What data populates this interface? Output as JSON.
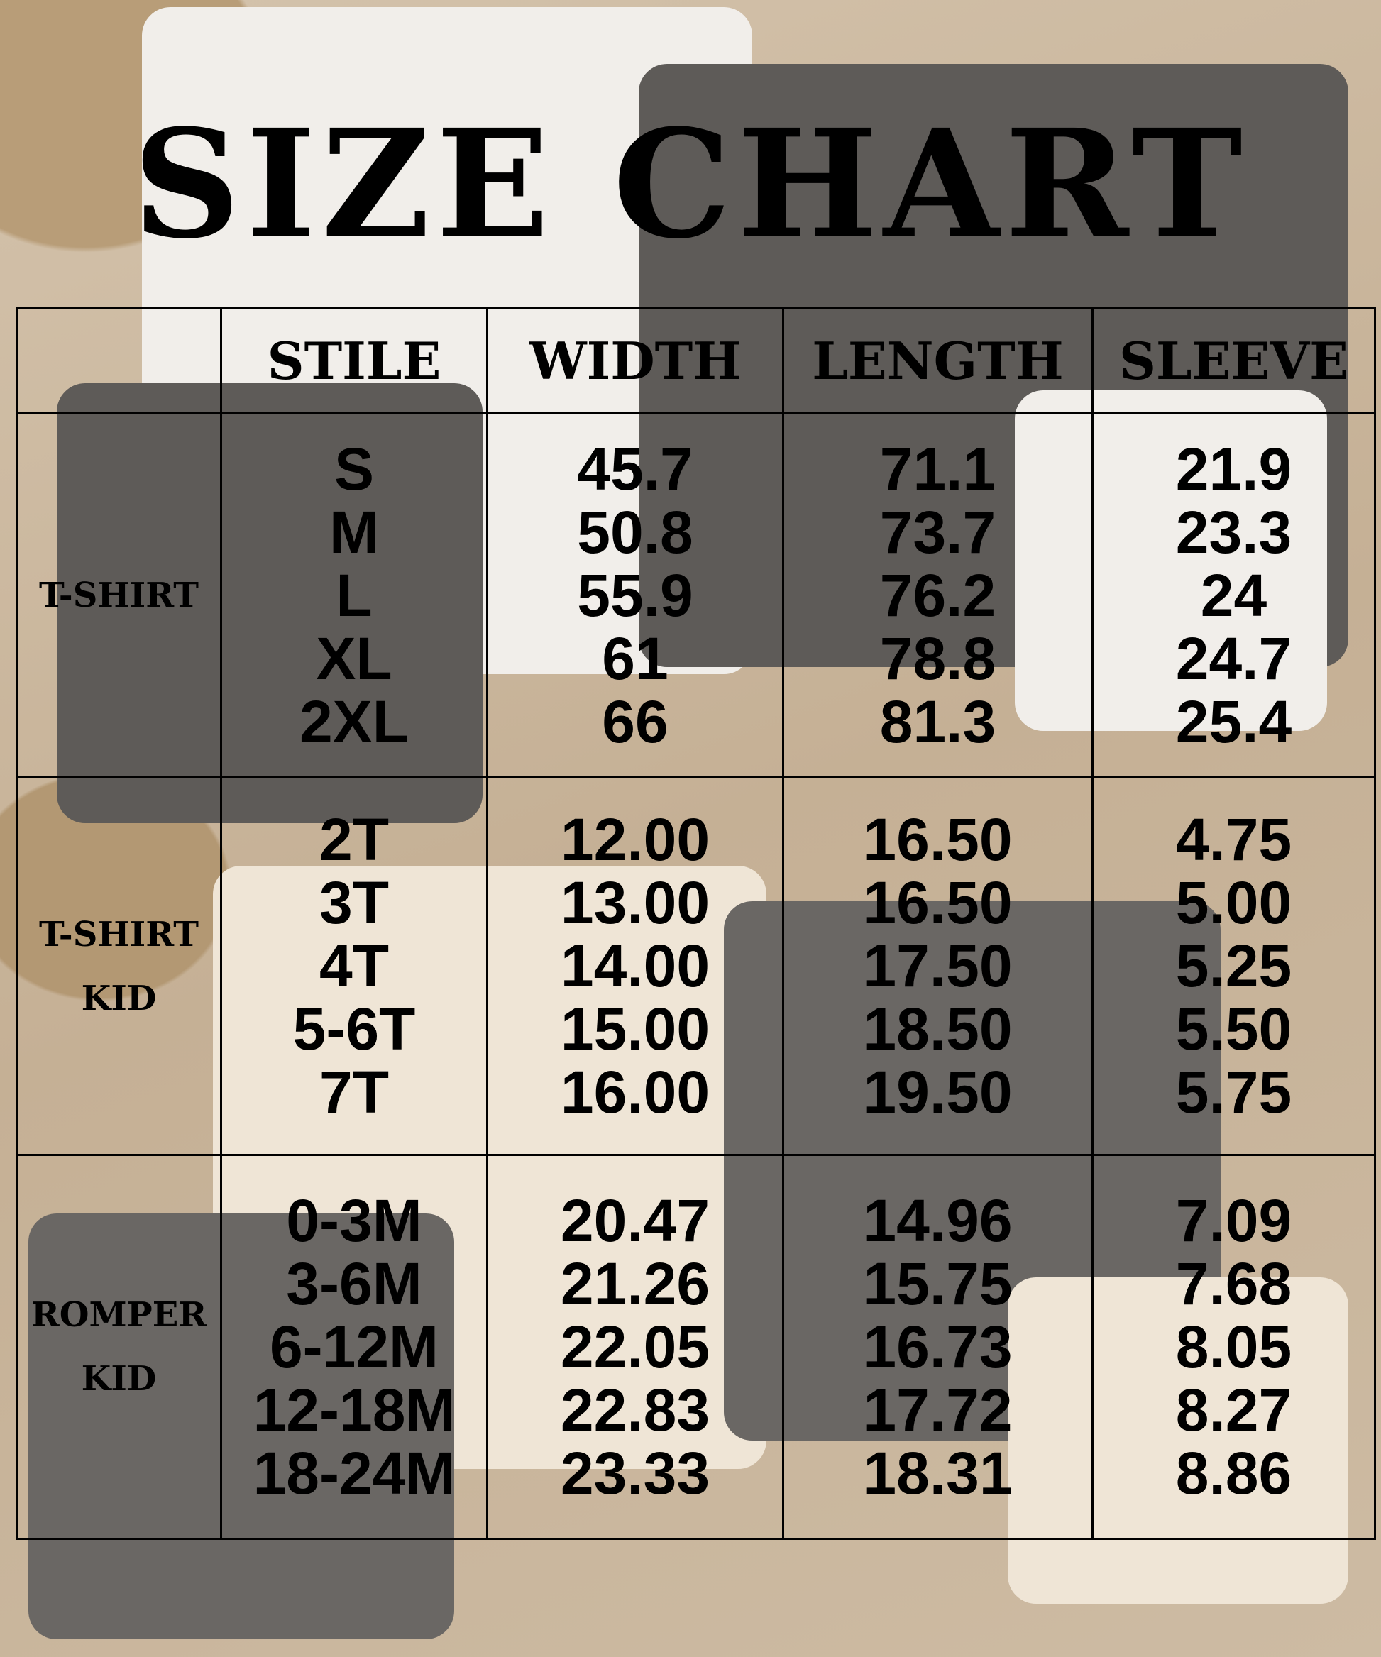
{
  "title": "SIZE CHART",
  "headers": [
    "STILE",
    "WIDTH",
    "LENGTH",
    "SLEEVE"
  ],
  "sections": [
    {
      "category": [
        "T-SHIRT"
      ],
      "stile": [
        "S",
        "M",
        "L",
        "XL",
        "2XL"
      ],
      "width": [
        "45.7",
        "50.8",
        "55.9",
        "61",
        "66"
      ],
      "length": [
        "71.1",
        "73.7",
        "76.2",
        "78.8",
        "81.3"
      ],
      "sleeve": [
        "21.9",
        "23.3",
        "24",
        "24.7",
        "25.4"
      ]
    },
    {
      "category": [
        "T-SHIRT",
        "KID"
      ],
      "stile": [
        "2T",
        "3T",
        "4T",
        "5-6T",
        "7T"
      ],
      "width": [
        "12.00",
        "13.00",
        "14.00",
        "15.00",
        "16.00"
      ],
      "length": [
        "16.50",
        "16.50",
        "17.50",
        "18.50",
        "19.50"
      ],
      "sleeve": [
        "4.75",
        "5.00",
        "5.25",
        "5.50",
        "5.75"
      ]
    },
    {
      "category": [
        "ROMPER",
        "KID"
      ],
      "stile": [
        "0-3M",
        "3-6M",
        "6-12M",
        "12-18M",
        "18-24M"
      ],
      "width": [
        "20.47",
        "21.26",
        "22.05",
        "22.83",
        "23.33"
      ],
      "length": [
        "14.96",
        "15.75",
        "16.73",
        "17.72",
        "18.31"
      ],
      "sleeve": [
        "7.09",
        "7.68",
        "8.05",
        "8.27",
        "8.86"
      ]
    }
  ]
}
